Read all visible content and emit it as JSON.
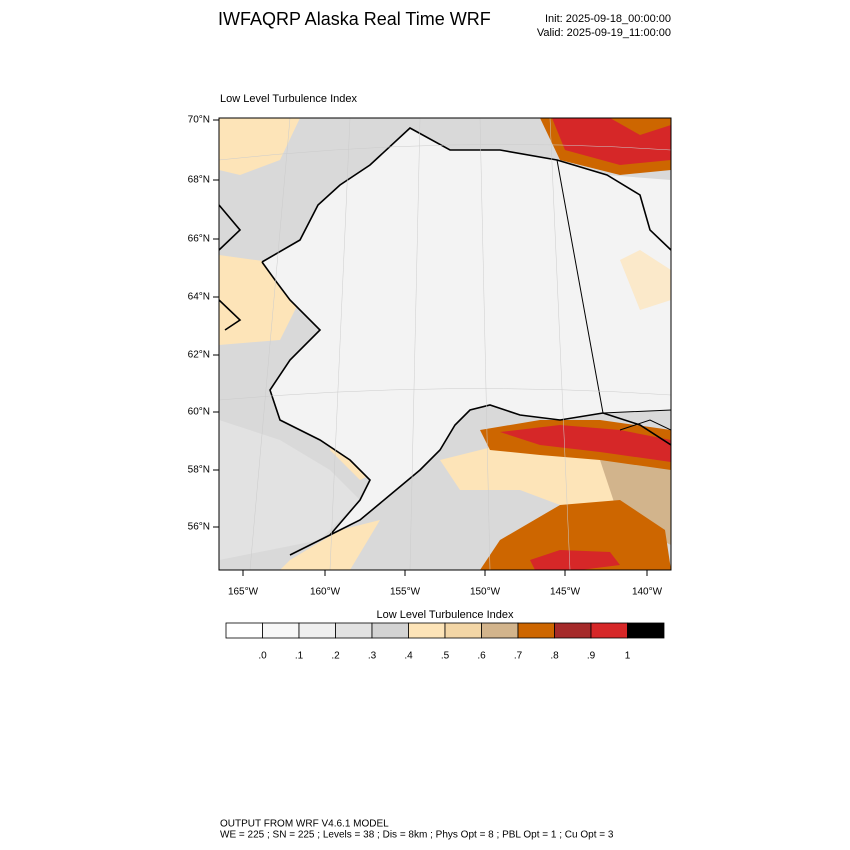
{
  "header": {
    "title": "IWFAQRP Alaska Real Time WRF",
    "init": "Init: 2025-09-18_00:00:00",
    "valid": "Valid: 2025-09-19_11:00:00"
  },
  "map": {
    "title": "Low Level Turbulence Index",
    "lat_labels": [
      "70°N",
      "68°N",
      "66°N",
      "64°N",
      "62°N",
      "60°N",
      "58°N",
      "56°N"
    ],
    "lon_labels": [
      "165°W",
      "160°W",
      "155°W",
      "150°W",
      "145°W",
      "140°W"
    ]
  },
  "colorbar": {
    "title": "Low Level Turbulence Index",
    "colors": [
      "#ffffff",
      "#f7f7f7",
      "#efefef",
      "#e2e2e2",
      "#d3d3d3",
      "#fde4b8",
      "#f3d6a6",
      "#d2b48c",
      "#cd6600",
      "#a52a2a",
      "#d62728",
      "#000000"
    ],
    "labels": [
      ".0",
      ".1",
      ".2",
      ".3",
      ".4",
      ".5",
      ".6",
      ".7",
      ".8",
      ".9",
      "1"
    ]
  },
  "footer": {
    "model": "OUTPUT FROM WRF V4.6.1 MODEL",
    "settings": "WE = 225 ; SN = 225 ; Levels = 38 ; Dis = 8km ; Phys Opt = 8 ; PBL Opt = 1 ; Cu Opt = 3"
  }
}
